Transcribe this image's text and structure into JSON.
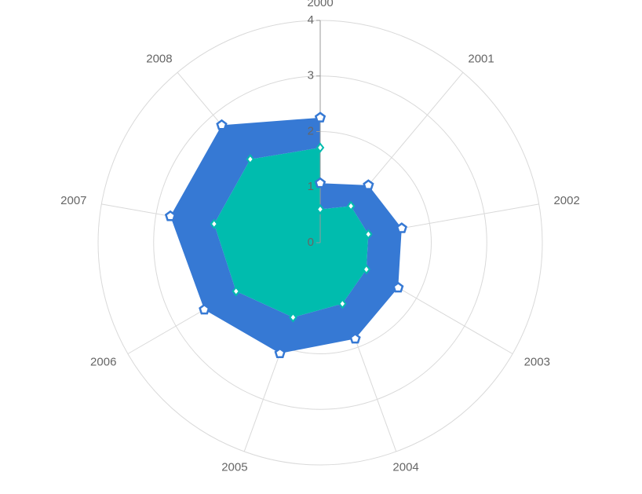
{
  "chart_data": {
    "type": "polar-stacked-area",
    "categories": [
      "2000",
      "2001",
      "2002",
      "2003",
      "2004",
      "2005",
      "2006",
      "2007",
      "2008",
      null
    ],
    "series": [
      {
        "color": "#00bcae",
        "values": [
          0.6,
          0.86,
          0.88,
          0.96,
          1.17,
          1.43,
          1.75,
          1.94,
          1.96,
          1.71
        ]
      },
      {
        "color": "#3679d4",
        "values": [
          0.47,
          0.49,
          0.61,
          0.66,
          0.67,
          0.69,
          0.66,
          0.8,
          0.8,
          0.54
        ]
      }
    ],
    "rlim": [
      0,
      4
    ],
    "rticks": [
      0,
      1,
      2,
      3,
      4
    ],
    "grid": true
  }
}
